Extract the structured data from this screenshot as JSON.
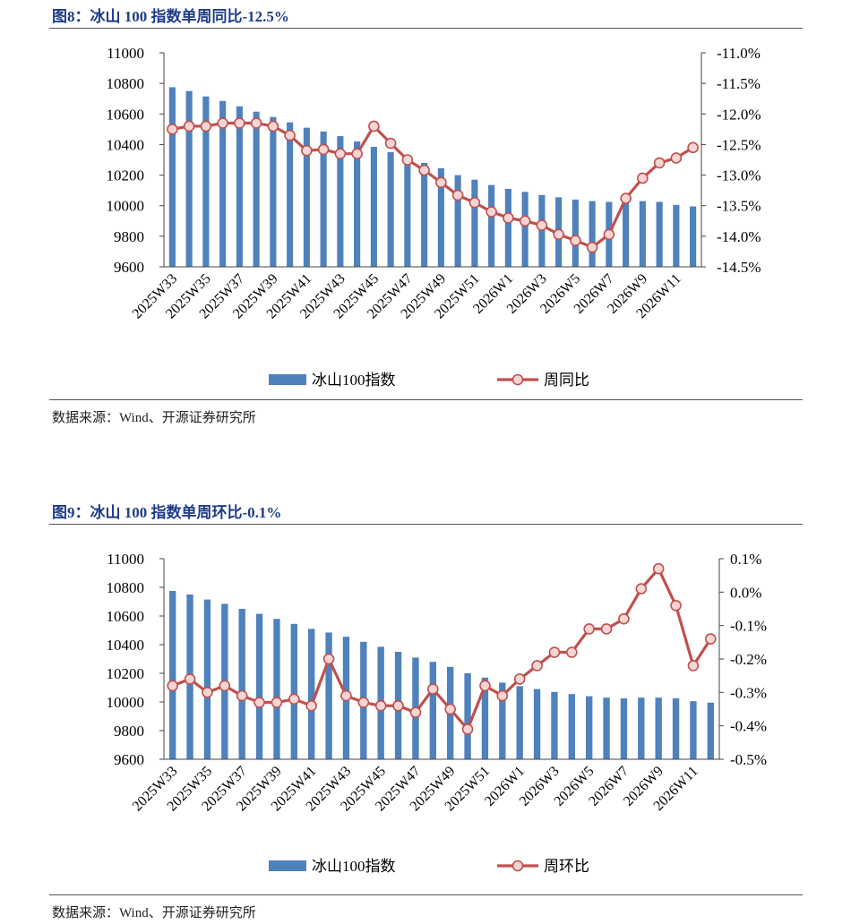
{
  "figures": [
    {
      "title": "图8：冰山 100 指数单周同比-12.5%",
      "source": "数据来源：Wind、开源证券研究所"
    },
    {
      "title": "图9：冰山 100 指数单周环比-0.1%",
      "source": "数据来源：Wind、开源证券研究所"
    }
  ],
  "chart_data": [
    {
      "type": "bar+line",
      "title": "冰山 100 指数单周同比-12.5%",
      "categories": [
        "2025W33",
        "2025W34",
        "2025W35",
        "2025W36",
        "2025W37",
        "2025W38",
        "2025W39",
        "2025W40",
        "2025W41",
        "2025W42",
        "2025W43",
        "2025W44",
        "2025W45",
        "2025W46",
        "2025W47",
        "2025W48",
        "2025W49",
        "2025W50",
        "2025W51",
        "2025W52",
        "2026W1",
        "2026W2",
        "2026W3",
        "2026W4",
        "2026W5",
        "2026W6",
        "2026W7",
        "2026W8",
        "2026W9",
        "2026W10",
        "2026W11",
        "2026W12"
      ],
      "tick_labels": [
        "2025W33",
        "2025W35",
        "2025W37",
        "2025W39",
        "2025W41",
        "2025W43",
        "2025W45",
        "2025W47",
        "2025W49",
        "2025W51",
        "2026W1",
        "2026W3",
        "2026W5",
        "2026W7",
        "2026W9",
        "2026W11"
      ],
      "series": [
        {
          "name": "冰山100指数",
          "axis": "left",
          "kind": "bar",
          "color": "#4f81bd",
          "values": [
            10775,
            10750,
            10715,
            10685,
            10650,
            10615,
            10580,
            10545,
            10510,
            10485,
            10455,
            10420,
            10385,
            10350,
            10310,
            10280,
            10245,
            10200,
            10170,
            10135,
            10110,
            10090,
            10070,
            10055,
            10040,
            10030,
            10025,
            10030,
            10030,
            10025,
            10005,
            9995
          ]
        },
        {
          "name": "周同比",
          "axis": "right",
          "kind": "line",
          "color": "#c0504d",
          "values": [
            -12.25,
            -12.2,
            -12.2,
            -12.15,
            -12.15,
            -12.15,
            -12.2,
            -12.35,
            -12.6,
            -12.58,
            -12.65,
            -12.65,
            -12.2,
            -12.48,
            -12.75,
            -12.92,
            -13.12,
            -13.33,
            -13.45,
            -13.6,
            -13.7,
            -13.75,
            -13.82,
            -13.97,
            -14.07,
            -14.18,
            -13.97,
            -13.38,
            -13.05,
            -12.8,
            -12.72,
            -12.55
          ]
        }
      ],
      "y_left": {
        "min": 9600,
        "max": 11000,
        "step": 200,
        "ticks": [
          "9600",
          "9800",
          "10000",
          "10200",
          "10400",
          "10600",
          "10800",
          "11000"
        ]
      },
      "y_right": {
        "min": -14.5,
        "max": -11.0,
        "step": 0.5,
        "ticks": [
          "-14.5%",
          "-14.0%",
          "-13.5%",
          "-13.0%",
          "-12.5%",
          "-12.0%",
          "-11.5%",
          "-11.0%"
        ]
      },
      "legend": [
        "冰山100指数",
        "周同比"
      ],
      "legend_position": "bottom"
    },
    {
      "type": "bar+line",
      "title": "冰山 100 指数单周环比-0.1%",
      "categories": [
        "2025W33",
        "2025W34",
        "2025W35",
        "2025W36",
        "2025W37",
        "2025W38",
        "2025W39",
        "2025W40",
        "2025W41",
        "2025W42",
        "2025W43",
        "2025W44",
        "2025W45",
        "2025W46",
        "2025W47",
        "2025W48",
        "2025W49",
        "2025W50",
        "2025W51",
        "2025W52",
        "2026W1",
        "2026W2",
        "2026W3",
        "2026W4",
        "2026W5",
        "2026W6",
        "2026W7",
        "2026W8",
        "2026W9",
        "2026W10",
        "2026W11",
        "2026W12"
      ],
      "tick_labels": [
        "2025W33",
        "2025W35",
        "2025W37",
        "2025W39",
        "2025W41",
        "2025W43",
        "2025W45",
        "2025W47",
        "2025W49",
        "2025W51",
        "2026W1",
        "2026W3",
        "2026W5",
        "2026W7",
        "2026W9",
        "2026W11"
      ],
      "series": [
        {
          "name": "冰山100指数",
          "axis": "left",
          "kind": "bar",
          "color": "#4f81bd",
          "values": [
            10775,
            10750,
            10715,
            10685,
            10650,
            10615,
            10580,
            10545,
            10510,
            10485,
            10455,
            10420,
            10385,
            10350,
            10310,
            10280,
            10245,
            10200,
            10170,
            10135,
            10110,
            10090,
            10070,
            10055,
            10040,
            10030,
            10025,
            10030,
            10030,
            10025,
            10005,
            9995
          ]
        },
        {
          "name": "周环比",
          "axis": "right",
          "kind": "line",
          "color": "#c0504d",
          "values": [
            -0.28,
            -0.26,
            -0.3,
            -0.28,
            -0.31,
            -0.33,
            -0.33,
            -0.32,
            -0.34,
            -0.2,
            -0.31,
            -0.33,
            -0.34,
            -0.34,
            -0.36,
            -0.29,
            -0.35,
            -0.41,
            -0.28,
            -0.31,
            -0.26,
            -0.22,
            -0.18,
            -0.18,
            -0.11,
            -0.11,
            -0.08,
            0.01,
            0.07,
            -0.04,
            -0.22,
            -0.14
          ]
        }
      ],
      "y_left": {
        "min": 9600,
        "max": 11000,
        "step": 200,
        "ticks": [
          "9600",
          "9800",
          "10000",
          "10200",
          "10400",
          "10600",
          "10800",
          "11000"
        ]
      },
      "y_right": {
        "min": -0.5,
        "max": 0.1,
        "step": 0.1,
        "ticks": [
          "-0.5%",
          "-0.4%",
          "-0.3%",
          "-0.2%",
          "-0.1%",
          "0.0%",
          "0.1%"
        ]
      },
      "legend": [
        "冰山100指数",
        "周环比"
      ],
      "legend_position": "bottom"
    }
  ]
}
